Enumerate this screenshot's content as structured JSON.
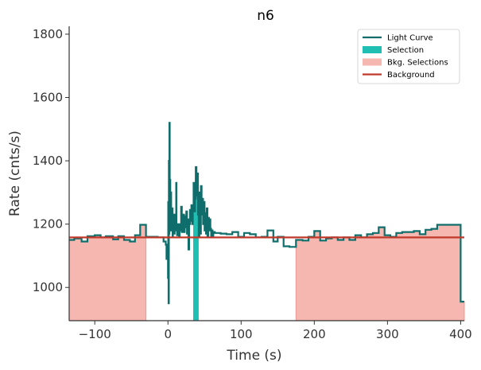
{
  "chart_data": {
    "type": "line",
    "title": "n6",
    "xlabel": "Time (s)",
    "ylabel": "Rate (cnts/s)",
    "xlim": [
      -135,
      405
    ],
    "ylim": [
      895,
      1825
    ],
    "x_ticks": [
      -100,
      0,
      100,
      200,
      300,
      400
    ],
    "x_tick_labels": [
      "−100",
      "0",
      "100",
      "200",
      "300",
      "400"
    ],
    "y_ticks": [
      1000,
      1200,
      1400,
      1600,
      1800
    ],
    "y_tick_labels": [
      "1000",
      "1200",
      "1400",
      "1600",
      "1800"
    ],
    "grid": false,
    "legend_position": "top-right",
    "colors": {
      "light_curve": "#0f6e6b",
      "selection": "#1fbfb4",
      "bkg_selection": "#f5b7b0",
      "bkg_selection_edge": "#e89a92",
      "background": "#c0392b",
      "axis": "#333333"
    },
    "legend": [
      {
        "label": "Light Curve",
        "kind": "line",
        "color": "#0f6e6b"
      },
      {
        "label": "Selection",
        "kind": "patch",
        "color": "#1fbfb4"
      },
      {
        "label": "Bkg. Selections",
        "kind": "patch",
        "color": "#f5b7b0"
      },
      {
        "label": "Background",
        "kind": "line",
        "color": "#c0392b"
      }
    ],
    "background_level": 1158,
    "selection": [
      [
        34.5,
        42.0
      ]
    ],
    "bkg_selections": [
      [
        -135,
        -30
      ],
      [
        175,
        405
      ]
    ],
    "light_curve": [
      [
        -135,
        1150
      ],
      [
        -128,
        1155
      ],
      [
        -118,
        1145
      ],
      [
        -110,
        1162
      ],
      [
        -100,
        1165
      ],
      [
        -92,
        1158
      ],
      [
        -85,
        1162
      ],
      [
        -75,
        1152
      ],
      [
        -68,
        1162
      ],
      [
        -60,
        1150
      ],
      [
        -52,
        1145
      ],
      [
        -45,
        1165
      ],
      [
        -38,
        1198
      ],
      [
        -30,
        1160
      ],
      [
        -22,
        1160
      ],
      [
        -14,
        1158
      ],
      [
        -6,
        1145
      ],
      [
        -3,
        1135
      ],
      [
        -2,
        1090
      ],
      [
        -1,
        1120
      ],
      [
        0,
        1030
      ],
      [
        0.4,
        1270
      ],
      [
        0.8,
        950
      ],
      [
        1.2,
        1400
      ],
      [
        1.6,
        1170
      ],
      [
        2.0,
        1520
      ],
      [
        2.4,
        1230
      ],
      [
        2.8,
        1340
      ],
      [
        3.2,
        1200
      ],
      [
        3.6,
        1260
      ],
      [
        4.0,
        1300
      ],
      [
        4.4,
        1180
      ],
      [
        4.8,
        1240
      ],
      [
        5.2,
        1190
      ],
      [
        5.6,
        1215
      ],
      [
        6.0,
        1250
      ],
      [
        6.4,
        1160
      ],
      [
        6.8,
        1230
      ],
      [
        7.2,
        1195
      ],
      [
        7.6,
        1210
      ],
      [
        8.0,
        1180
      ],
      [
        8.4,
        1230
      ],
      [
        8.8,
        1170
      ],
      [
        9.2,
        1200
      ],
      [
        9.6,
        1230
      ],
      [
        10.0,
        1190
      ],
      [
        10.4,
        1180
      ],
      [
        10.8,
        1220
      ],
      [
        11.2,
        1330
      ],
      [
        11.6,
        1190
      ],
      [
        12.0,
        1200
      ],
      [
        12.4,
        1165
      ],
      [
        12.8,
        1180
      ],
      [
        13.2,
        1200
      ],
      [
        13.6,
        1170
      ],
      [
        14.0,
        1190
      ],
      [
        15,
        1160
      ],
      [
        16,
        1200
      ],
      [
        17,
        1180
      ],
      [
        18,
        1255
      ],
      [
        19,
        1175
      ],
      [
        20,
        1205
      ],
      [
        21,
        1230
      ],
      [
        22,
        1175
      ],
      [
        23,
        1225
      ],
      [
        24,
        1190
      ],
      [
        25,
        1240
      ],
      [
        26,
        1170
      ],
      [
        27,
        1215
      ],
      [
        28,
        1120
      ],
      [
        29,
        1200
      ],
      [
        30,
        1245
      ],
      [
        31,
        1210
      ],
      [
        32,
        1260
      ],
      [
        33,
        1200
      ],
      [
        34,
        1250
      ],
      [
        35,
        1330
      ],
      [
        36,
        1240
      ],
      [
        37,
        1280
      ],
      [
        38,
        1380
      ],
      [
        39,
        1290
      ],
      [
        40,
        1360
      ],
      [
        41,
        1230
      ],
      [
        42,
        1160
      ],
      [
        43,
        1300
      ],
      [
        44,
        1170
      ],
      [
        45,
        1320
      ],
      [
        46,
        1230
      ],
      [
        47,
        1280
      ],
      [
        48,
        1200
      ],
      [
        49,
        1270
      ],
      [
        50,
        1180
      ],
      [
        51,
        1235
      ],
      [
        52,
        1170
      ],
      [
        53,
        1250
      ],
      [
        54,
        1160
      ],
      [
        55,
        1220
      ],
      [
        56,
        1180
      ],
      [
        57,
        1215
      ],
      [
        58,
        1185
      ],
      [
        59,
        1160
      ],
      [
        60,
        1180
      ],
      [
        61,
        1160
      ],
      [
        62,
        1175
      ],
      [
        64,
        1172
      ],
      [
        72,
        1170
      ],
      [
        80,
        1168
      ],
      [
        88,
        1175
      ],
      [
        96,
        1160
      ],
      [
        104,
        1172
      ],
      [
        112,
        1168
      ],
      [
        120,
        1158
      ],
      [
        128,
        1160
      ],
      [
        136,
        1180
      ],
      [
        144,
        1145
      ],
      [
        150,
        1160
      ],
      [
        158,
        1130
      ],
      [
        166,
        1128
      ],
      [
        175,
        1150
      ],
      [
        184,
        1148
      ],
      [
        192,
        1160
      ],
      [
        200,
        1178
      ],
      [
        208,
        1148
      ],
      [
        216,
        1155
      ],
      [
        224,
        1158
      ],
      [
        232,
        1150
      ],
      [
        240,
        1158
      ],
      [
        248,
        1150
      ],
      [
        256,
        1165
      ],
      [
        264,
        1158
      ],
      [
        272,
        1168
      ],
      [
        280,
        1172
      ],
      [
        288,
        1190
      ],
      [
        296,
        1165
      ],
      [
        304,
        1160
      ],
      [
        312,
        1172
      ],
      [
        320,
        1175
      ],
      [
        328,
        1175
      ],
      [
        336,
        1178
      ],
      [
        344,
        1168
      ],
      [
        352,
        1182
      ],
      [
        360,
        1185
      ],
      [
        368,
        1198
      ],
      [
        376,
        1198
      ],
      [
        384,
        1198
      ],
      [
        392,
        1198
      ],
      [
        400,
        955
      ],
      [
        405,
        955
      ]
    ]
  }
}
